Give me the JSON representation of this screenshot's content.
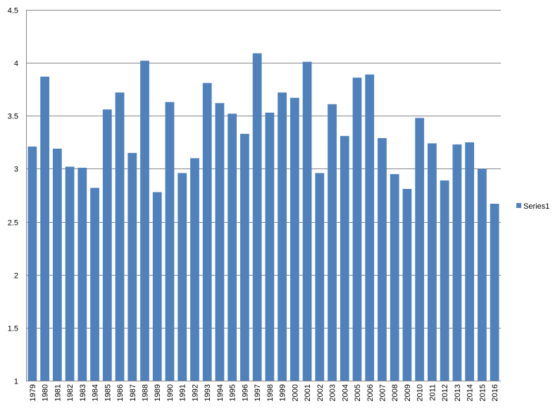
{
  "chart_data": {
    "type": "bar",
    "title": "",
    "xlabel": "",
    "ylabel": "",
    "ylim": [
      1,
      4.5
    ],
    "yticks": [
      "1",
      "1.5",
      "2",
      "2.5",
      "3",
      "3.5",
      "4",
      "4.5"
    ],
    "grid": true,
    "legend_position": "right",
    "categories": [
      "1979",
      "1980",
      "1981",
      "1982",
      "1983",
      "1984",
      "1985",
      "1986",
      "1987",
      "1988",
      "1989",
      "1990",
      "1991",
      "1992",
      "1993",
      "1994",
      "1995",
      "1996",
      "1997",
      "1998",
      "1999",
      "2000",
      "2001",
      "2002",
      "2003",
      "2004",
      "2005",
      "2006",
      "2007",
      "2008",
      "2009",
      "2010",
      "2011",
      "2012",
      "2013",
      "2014",
      "2015",
      "2016"
    ],
    "series": [
      {
        "name": "Series1",
        "color": "#4f81bd",
        "values": [
          3.21,
          3.87,
          3.19,
          3.02,
          3.01,
          2.82,
          3.56,
          3.72,
          3.15,
          4.02,
          2.78,
          3.63,
          2.96,
          3.1,
          3.81,
          3.62,
          3.52,
          3.33,
          4.09,
          3.53,
          3.72,
          3.67,
          4.01,
          2.96,
          3.61,
          3.31,
          3.86,
          3.89,
          3.29,
          2.95,
          2.81,
          3.48,
          3.24,
          2.89,
          3.23,
          3.25,
          3.0,
          2.67
        ]
      }
    ]
  }
}
